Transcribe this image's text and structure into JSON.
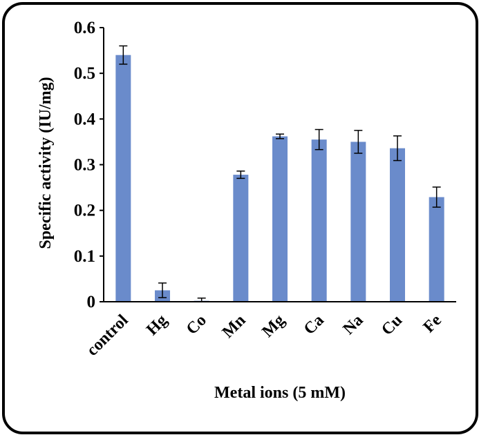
{
  "chart_data": {
    "type": "bar",
    "xlabel": "Metal ions (5 mM)",
    "ylabel": "Specific activity (IU/mg)",
    "ylim": [
      0,
      0.6
    ],
    "yticks": [
      0,
      0.1,
      0.2,
      0.3,
      0.4,
      0.5,
      0.6
    ],
    "ytick_labels": [
      "0",
      "0.1",
      "0.2",
      "0.3",
      "0.4",
      "0.5",
      "0.6"
    ],
    "categories": [
      "control",
      "Hg",
      "Co",
      "Mn",
      "Mg",
      "Ca",
      "Na",
      "Cu",
      "Fe"
    ],
    "values": [
      0.54,
      0.025,
      0.002,
      0.278,
      0.362,
      0.355,
      0.35,
      0.336,
      0.229
    ],
    "errors": [
      0.02,
      0.016,
      0.006,
      0.008,
      0.005,
      0.022,
      0.025,
      0.027,
      0.022
    ],
    "bar_color": "#6A8BCB",
    "grid": false,
    "legend": "none"
  }
}
